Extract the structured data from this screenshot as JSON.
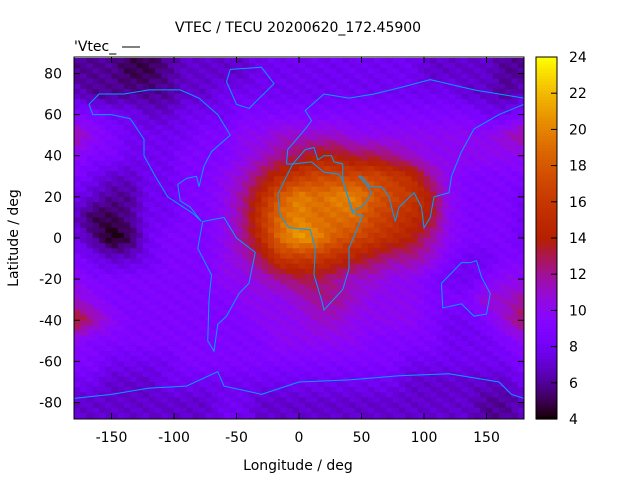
{
  "chart_data": {
    "type": "heatmap",
    "title": "VTEC / TECU 20200620_172.45900",
    "key_label": "'Vtec_",
    "xlabel": "Longitude / deg",
    "ylabel": "Latitude / deg",
    "xlim": [
      -180,
      180
    ],
    "ylim": [
      -88,
      88
    ],
    "xticks": [
      -150,
      -100,
      -50,
      0,
      50,
      100,
      150
    ],
    "yticks": [
      -80,
      -60,
      -40,
      -20,
      0,
      20,
      40,
      60,
      80
    ],
    "colorbar": {
      "range": [
        4,
        24
      ],
      "ticks": [
        4,
        6,
        8,
        10,
        12,
        14,
        16,
        18,
        20,
        22,
        24
      ],
      "palette": "black-blue-red-yellow"
    },
    "coastline_color": "#00a0ff",
    "grid": false,
    "lons": [
      -180,
      -165,
      -150,
      -135,
      -120,
      -105,
      -90,
      -75,
      -60,
      -45,
      -30,
      -15,
      0,
      15,
      30,
      45,
      60,
      75,
      90,
      105,
      120,
      135,
      150,
      165,
      180
    ],
    "lats": [
      80,
      70,
      60,
      50,
      40,
      30,
      20,
      10,
      0,
      -10,
      -20,
      -30,
      -40,
      -50,
      -60,
      -70,
      -80
    ],
    "values": [
      [
        6,
        6,
        6,
        5,
        5,
        6,
        7,
        7,
        7,
        7,
        8,
        8,
        8,
        8,
        8,
        8,
        8,
        8,
        8,
        7,
        7,
        7,
        7,
        6,
        6
      ],
      [
        7,
        6,
        6,
        6,
        6,
        6,
        7,
        7,
        8,
        8,
        8,
        8,
        8,
        8,
        8,
        8,
        8,
        8,
        8,
        8,
        8,
        7,
        7,
        6,
        7
      ],
      [
        9,
        9,
        8,
        8,
        7,
        7,
        8,
        8,
        8,
        9,
        9,
        9,
        9,
        9,
        9,
        9,
        9,
        9,
        9,
        9,
        9,
        9,
        8,
        8,
        9
      ],
      [
        12,
        10,
        9,
        8,
        8,
        8,
        8,
        9,
        9,
        10,
        10,
        11,
        11,
        11,
        11,
        10,
        10,
        10,
        10,
        10,
        10,
        10,
        10,
        11,
        12
      ],
      [
        10,
        9,
        9,
        8,
        8,
        8,
        9,
        9,
        9,
        10,
        11,
        12,
        13,
        14,
        14,
        13,
        13,
        12,
        11,
        10,
        10,
        10,
        10,
        10,
        10
      ],
      [
        9,
        8,
        7,
        7,
        8,
        8,
        9,
        9,
        10,
        11,
        13,
        15,
        16,
        17,
        17,
        17,
        17,
        16,
        15,
        12,
        10,
        9,
        9,
        9,
        9
      ],
      [
        8,
        7,
        6,
        6,
        8,
        8,
        9,
        9,
        10,
        12,
        15,
        18,
        20,
        19,
        20,
        20,
        18,
        17,
        16,
        14,
        10,
        9,
        9,
        9,
        8
      ],
      [
        7,
        5,
        5,
        6,
        8,
        8,
        9,
        9,
        10,
        12,
        16,
        19,
        20,
        19,
        19,
        19,
        17,
        16,
        15,
        14,
        10,
        9,
        9,
        9,
        8
      ],
      [
        8,
        6,
        4,
        5,
        8,
        9,
        9,
        9,
        10,
        12,
        15,
        19,
        21,
        20,
        18,
        17,
        16,
        15,
        14,
        12,
        10,
        9,
        9,
        9,
        8
      ],
      [
        9,
        8,
        7,
        7,
        8,
        9,
        9,
        9,
        10,
        11,
        13,
        16,
        16,
        16,
        15,
        14,
        13,
        12,
        12,
        11,
        9,
        8,
        8,
        9,
        9
      ],
      [
        10,
        9,
        9,
        9,
        9,
        9,
        9,
        9,
        10,
        10,
        11,
        12,
        13,
        13,
        12,
        11,
        11,
        10,
        10,
        9,
        8,
        8,
        9,
        10,
        10
      ],
      [
        11,
        10,
        9,
        9,
        9,
        9,
        9,
        9,
        9,
        10,
        10,
        10,
        11,
        12,
        12,
        11,
        10,
        10,
        10,
        9,
        9,
        9,
        11,
        11,
        12
      ],
      [
        14,
        12,
        10,
        9,
        9,
        9,
        9,
        9,
        9,
        9,
        10,
        10,
        10,
        11,
        11,
        10,
        10,
        10,
        10,
        9,
        8,
        8,
        9,
        11,
        13
      ],
      [
        10,
        9,
        9,
        9,
        9,
        9,
        9,
        9,
        9,
        9,
        9,
        10,
        10,
        10,
        10,
        10,
        9,
        9,
        9,
        9,
        8,
        8,
        8,
        9,
        10
      ],
      [
        9,
        9,
        8,
        8,
        8,
        8,
        9,
        9,
        9,
        9,
        9,
        9,
        9,
        9,
        9,
        9,
        9,
        9,
        8,
        8,
        8,
        8,
        8,
        8,
        9
      ],
      [
        8,
        8,
        7,
        7,
        7,
        8,
        8,
        8,
        8,
        8,
        8,
        8,
        8,
        8,
        8,
        8,
        8,
        8,
        7,
        7,
        7,
        7,
        7,
        7,
        8
      ],
      [
        7,
        7,
        7,
        7,
        7,
        7,
        7,
        7,
        8,
        8,
        7,
        7,
        7,
        7,
        7,
        7,
        7,
        7,
        7,
        7,
        7,
        7,
        6,
        6,
        7
      ]
    ]
  }
}
